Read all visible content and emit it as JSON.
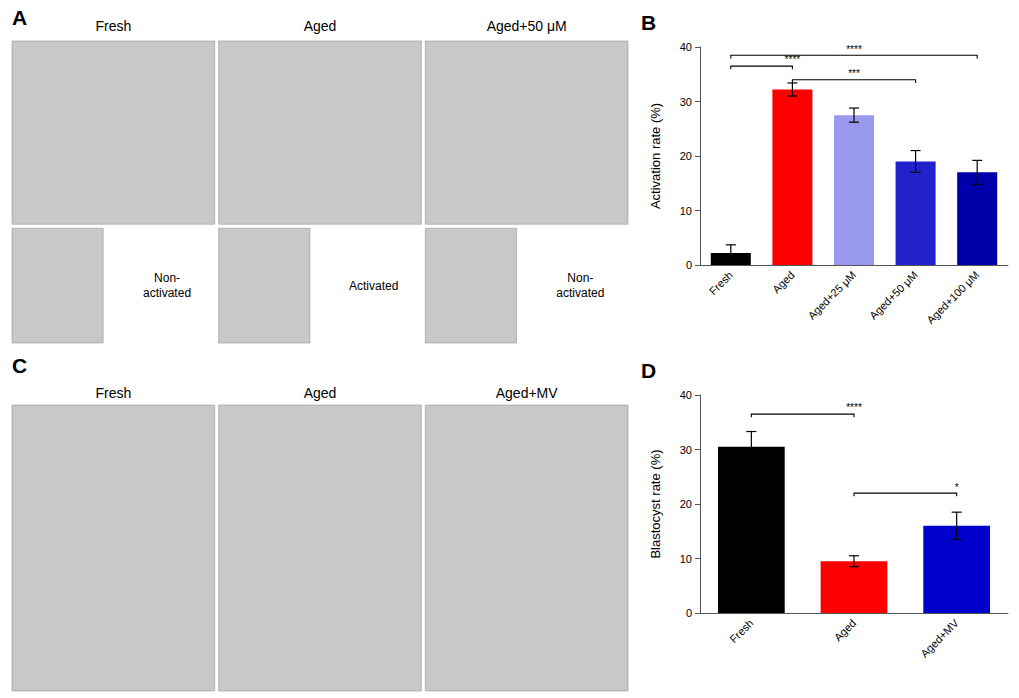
{
  "chart_data": [
    {
      "type": "image",
      "title": "A",
      "categories": [
        "Fresh",
        "Aged",
        "Aged+50 μM"
      ],
      "annotations": [
        "Non-\nactivated",
        "Activated",
        "Non-\nactivated"
      ],
      "color": "#C8C8C8"
    },
    {
      "type": "bar",
      "title": "B",
      "categories": [
        "Fresh",
        "Aged",
        "Aged+25 μM",
        "Aged+50 μM",
        "Aged+100 μM"
      ],
      "values": [
        2.2,
        32.2,
        27.5,
        19.0,
        17.0
      ],
      "errors": [
        1.5,
        1.2,
        1.3,
        2.0,
        2.2
      ],
      "colors": [
        "#000000",
        "#FF0000",
        "#9999EE",
        "#2222CC",
        "#0000AA"
      ],
      "ylabel": "Activation rate (%)",
      "ylim": [
        0,
        40
      ],
      "yticks": [
        0,
        10,
        20,
        30,
        40
      ],
      "grid": false,
      "annotations": [
        {
          "text": "****",
          "x1": "Fresh",
          "x2": "Aged",
          "y": 36.5
        },
        {
          "text": "***",
          "x1": "Aged",
          "x2": "Aged+50 μM",
          "y": 34.0
        },
        {
          "text": "****",
          "x1": "Fresh",
          "x2": "Aged+100 μM",
          "y": 38.5
        }
      ]
    },
    {
      "type": "image",
      "title": "C",
      "categories": [
        "Fresh",
        "Aged",
        "Aged+MV"
      ],
      "color": "#C8C8C8"
    },
    {
      "type": "bar",
      "title": "D",
      "categories": [
        "Fresh",
        "Aged",
        "Aged+MV"
      ],
      "values": [
        30.5,
        9.5,
        16.0
      ],
      "errors": [
        2.8,
        1.0,
        2.5
      ],
      "colors": [
        "#000000",
        "#FF0000",
        "#0000CC"
      ],
      "ylabel": "Blastocyst rate (%)",
      "ylim": [
        0,
        40
      ],
      "yticks": [
        0,
        10,
        20,
        30,
        40
      ],
      "grid": false,
      "annotations": [
        {
          "text": "****",
          "x1": "Fresh",
          "x2": "Aged",
          "y": 36.5
        },
        {
          "text": "*",
          "x1": "Aged",
          "x2": "Aged+MV",
          "y": 22.0
        }
      ]
    }
  ]
}
